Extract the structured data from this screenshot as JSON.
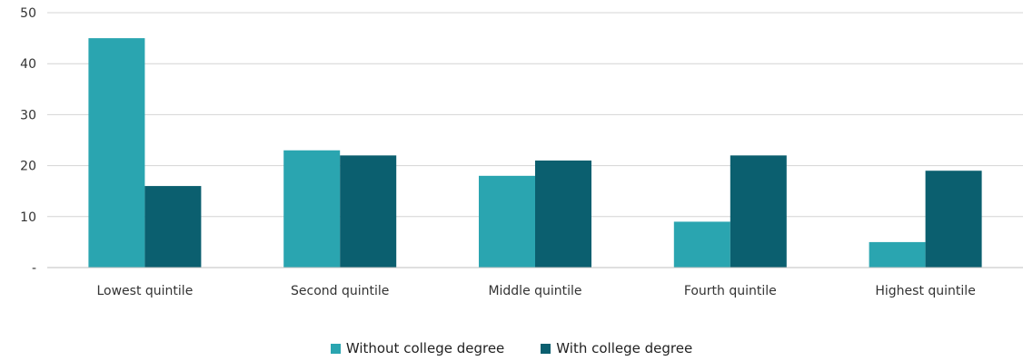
{
  "chart_data": {
    "type": "bar",
    "title": "",
    "xlabel": "",
    "ylabel": "",
    "categories": [
      "Lowest quintile",
      "Second quintile",
      "Middle quintile",
      "Fourth quintile",
      "Highest quintile"
    ],
    "series": [
      {
        "name": "Without college degree",
        "color": "#2aa5b0",
        "values": [
          45,
          23,
          18,
          9,
          5
        ]
      },
      {
        "name": "With college degree",
        "color": "#0b5f6f",
        "values": [
          16,
          22,
          21,
          22,
          19
        ]
      }
    ],
    "ylim": [
      0,
      50
    ],
    "yticks": [
      0,
      10,
      20,
      30,
      40,
      50
    ],
    "ytick_labels": [
      "-",
      "10",
      "20",
      "30",
      "40",
      "50"
    ],
    "grid": true,
    "legend_position": "bottom"
  }
}
